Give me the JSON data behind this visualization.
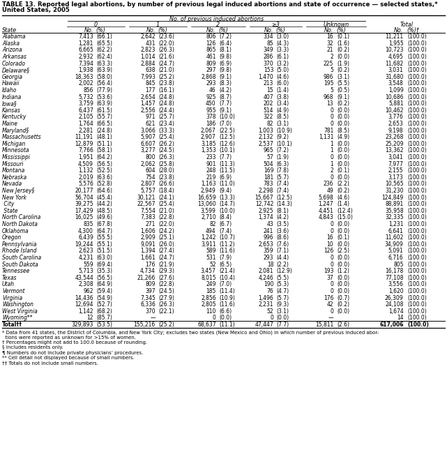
{
  "title_line1": "TABLE 13. Reported legal abortions, by number of previous legal induced abortions and state of occurrence — selected states,*",
  "title_line2": "United States, 2005",
  "col_header_top": "No. of previous induced abortions",
  "col_groups": [
    "0",
    "1",
    "2",
    "≥3",
    "Unknown",
    "Total"
  ],
  "state_col": "State",
  "rows": [
    [
      "Alabama",
      "7,413",
      "(66.1)",
      "2,642",
      "(23.6)",
      "806",
      "(7.2)",
      "334",
      "(3.0)",
      "16",
      "(0.1)",
      "11,211",
      "(100.0)"
    ],
    [
      "Alaska",
      "1,281",
      "(65.5)",
      "431",
      "(22.0)",
      "126",
      "(6.4)",
      "85",
      "(4.3)",
      "32",
      "(1.6)",
      "1,955",
      "(100.0)"
    ],
    [
      "Arizona",
      "6,665",
      "(62.2)",
      "2,823",
      "(26.3)",
      "865",
      "(8.1)",
      "349",
      "(3.3)",
      "21",
      "(0.2)",
      "10,723",
      "(100.0)"
    ],
    [
      "Arkansas",
      "2,932",
      "(62.4)",
      "1,014",
      "(21.6)",
      "461",
      "(9.8)",
      "286",
      "(6.1)",
      "2",
      "(0.0)",
      "4,695",
      "(100.0)"
    ],
    [
      "Colorado",
      "7,394",
      "(63.3)",
      "2,884",
      "(24.7)",
      "809",
      "(6.9)",
      "370",
      "(3.2)",
      "225",
      "(1.9)",
      "11,682",
      "(100.0)"
    ],
    [
      "Delaware§",
      "1,938",
      "(63.9)",
      "638",
      "(21.0)",
      "297",
      "(9.8)",
      "153",
      "(5.0)",
      "5",
      "(0.2)",
      "3,031",
      "(100.0)"
    ],
    [
      "Georgia",
      "18,363",
      "(58.0)",
      "7,993",
      "(25.2)",
      "2,868",
      "(9.1)",
      "1,470",
      "(4.6)",
      "986",
      "(3.1)",
      "31,680",
      "(100.0)"
    ],
    [
      "Hawaii",
      "2,002",
      "(56.4)",
      "845",
      "(23.8)",
      "293",
      "(8.3)",
      "213",
      "(6.0)",
      "195",
      "(5.5)",
      "3,548",
      "(100.0)"
    ],
    [
      "Idaho",
      "856",
      "(77.9)",
      "177",
      "(16.1)",
      "46",
      "(4.2)",
      "15",
      "(1.4)",
      "5",
      "(0.5)",
      "1,099",
      "(100.0)"
    ],
    [
      "Indiana",
      "5,732",
      "(53.6)",
      "2,654",
      "(24.8)",
      "925",
      "(8.7)",
      "407",
      "(3.8)",
      "968",
      "(9.1)",
      "10,686",
      "(100.0)"
    ],
    [
      "Iowa§",
      "3,759",
      "(63.9)",
      "1,457",
      "(24.8)",
      "450",
      "(7.7)",
      "202",
      "(3.4)",
      "13",
      "(0.2)",
      "5,881",
      "(100.0)"
    ],
    [
      "Kansas",
      "6,437",
      "(61.5)",
      "2,556",
      "(24.4)",
      "955",
      "(9.1)",
      "514",
      "(4.9)",
      "0",
      "(0.0)",
      "10,462",
      "(100.0)"
    ],
    [
      "Kentucky",
      "2,105",
      "(55.7)",
      "971",
      "(25.7)",
      "378",
      "(10.0)",
      "322",
      "(8.5)",
      "0",
      "(0.0)",
      "3,776",
      "(100.0)"
    ],
    [
      "Maine",
      "1,764",
      "(66.5)",
      "621",
      "(23.4)",
      "186",
      "(7.0)",
      "82",
      "(3.1)",
      "0",
      "(0.0)",
      "2,653",
      "(100.0)"
    ],
    [
      "Maryland§",
      "2,281",
      "(24.8)",
      "3,066",
      "(33.3)",
      "2,067",
      "(22.5)",
      "1,003",
      "(10.9)",
      "781",
      "(8.5)",
      "9,198",
      "(100.0)"
    ],
    [
      "Massachusetts",
      "11,191",
      "(48.1)",
      "5,907",
      "(25.4)",
      "2,907",
      "(12.5)",
      "2,132",
      "(9.2)",
      "1,131",
      "(4.9)",
      "23,268",
      "(100.0)"
    ],
    [
      "Michigan",
      "12,879",
      "(51.1)",
      "6,607",
      "(26.2)",
      "3,185",
      "(12.6)",
      "2,537",
      "(10.1)",
      "1",
      "(0.0)",
      "25,209",
      "(100.0)"
    ],
    [
      "Minnesota",
      "7,766",
      "(58.1)",
      "3,277",
      "(24.5)",
      "1,353",
      "(10.1)",
      "965",
      "(7.2)",
      "1",
      "(0.0)",
      "13,362",
      "(100.0)"
    ],
    [
      "Mississippi",
      "1,951",
      "(64.2)",
      "800",
      "(26.3)",
      "233",
      "(7.7)",
      "57",
      "(1.9)",
      "0",
      "(0.0)",
      "3,041",
      "(100.0)"
    ],
    [
      "Missouri",
      "4,509",
      "(56.5)",
      "2,062",
      "(25.8)",
      "901",
      "(11.3)",
      "504",
      "(6.3)",
      "1",
      "(0.0)",
      "7,977",
      "(100.0)"
    ],
    [
      "Montana",
      "1,132",
      "(52.5)",
      "604",
      "(28.0)",
      "248",
      "(11.5)",
      "169",
      "(7.8)",
      "2",
      "(0.1)",
      "2,155",
      "(100.0)"
    ],
    [
      "Nebraska",
      "2,019",
      "(63.6)",
      "754",
      "(23.8)",
      "219",
      "(6.9)",
      "181",
      "(5.7)",
      "0",
      "(0.0)",
      "3,173",
      "(100.0)"
    ],
    [
      "Nevada",
      "5,576",
      "(52.8)",
      "2,807",
      "(26.6)",
      "1,163",
      "(11.0)",
      "783",
      "(7.4)",
      "236",
      "(2.2)",
      "10,565",
      "(100.0)"
    ],
    [
      "New Jersey§",
      "20,177",
      "(64.6)",
      "5,757",
      "(18.4)",
      "2,949",
      "(9.4)",
      "2,298",
      "(7.4)",
      "49",
      "(0.2)",
      "31,230",
      "(100.0)"
    ],
    [
      "New York",
      "56,704",
      "(45.4)",
      "30,121",
      "(24.1)",
      "16,659",
      "(13.3)",
      "15,667",
      "(12.5)",
      "5,698",
      "(4.6)",
      "124,849",
      "(100.0)"
    ],
    [
      " City",
      "39,275",
      "(44.2)",
      "22,567",
      "(25.4)",
      "13,060",
      "(14.7)",
      "12,742",
      "(14.3)",
      "1,247",
      "(1.4)",
      "88,891",
      "(100.0)"
    ],
    [
      " State",
      "17,429",
      "(48.5)",
      "7,554",
      "(21.0)",
      "3,599",
      "(10.0)",
      "2,925",
      "(8.1)",
      "4,451",
      "(12.4)",
      "35,958",
      "(100.0)"
    ],
    [
      "North Carolina",
      "16,025",
      "(49.6)",
      "7,383",
      "(22.8)",
      "2,710",
      "(8.4)",
      "1,374",
      "(4.2)",
      "4,843",
      "(15.0)",
      "32,335",
      "(100.0)"
    ],
    [
      "North Dakota",
      "835",
      "(67.8)",
      "271",
      "(22.0)",
      "82",
      "(6.7)",
      "43",
      "(3.5)",
      "0",
      "(0.0)",
      "1,231",
      "(100.0)"
    ],
    [
      "Oklahoma",
      "4,300",
      "(64.7)",
      "1,606",
      "(24.2)",
      "494",
      "(7.4)",
      "241",
      "(3.6)",
      "0",
      "(0.0)",
      "6,641",
      "(100.0)"
    ],
    [
      "Oregon",
      "6,439",
      "(55.5)",
      "2,909",
      "(25.1)",
      "1,242",
      "(10.7)",
      "996",
      "(8.6)",
      "16",
      "(0.1)",
      "11,602",
      "(100.0)"
    ],
    [
      "Pennsylvania",
      "19,244",
      "(55.1)",
      "9,091",
      "(26.0)",
      "3,911",
      "(11.2)",
      "2,653",
      "(7.6)",
      "10",
      "(0.0)",
      "34,909",
      "(100.0)"
    ],
    [
      "Rhode Island",
      "2,623",
      "(51.5)",
      "1,394",
      "(27.4)",
      "589",
      "(11.6)",
      "359",
      "(7.1)",
      "126",
      "(2.5)",
      "5,091",
      "(100.0)"
    ],
    [
      "South Carolina",
      "4,231",
      "(63.0)",
      "1,661",
      "(24.7)",
      "531",
      "(7.9)",
      "293",
      "(4.4)",
      "0",
      "(0.0)",
      "6,716",
      "(100.0)"
    ],
    [
      "South Dakota",
      "559",
      "(69.4)",
      "176",
      "(21.9)",
      "52",
      "(6.5)",
      "18",
      "(2.2)",
      "0",
      "(0.0)",
      "805",
      "(100.0)"
    ],
    [
      "Tennessee",
      "5,713",
      "(35.3)",
      "4,734",
      "(29.3)",
      "3,457",
      "(21.4)",
      "2,081",
      "(12.9)",
      "193",
      "(1.2)",
      "16,178",
      "(100.0)"
    ],
    [
      "Texas",
      "43,544",
      "(56.5)",
      "21,266",
      "(27.6)",
      "8,015",
      "(10.4)",
      "4,246",
      "(5.5)",
      "37",
      "(0.0)",
      "77,108",
      "(100.0)"
    ],
    [
      "Utah",
      "2,308",
      "(64.9)",
      "809",
      "(22.8)",
      "249",
      "(7.0)",
      "190",
      "(5.3)",
      "0",
      "(0.0)",
      "3,556",
      "(100.0)"
    ],
    [
      "Vermont",
      "962",
      "(59.4)",
      "397",
      "(24.5)",
      "185",
      "(11.4)",
      "76",
      "(4.7)",
      "0",
      "(0.0)",
      "1,620",
      "(100.0)"
    ],
    [
      "Virginia",
      "14,436",
      "(54.9)",
      "7,345",
      "(27.9)",
      "2,856",
      "(10.9)",
      "1,496",
      "(5.7)",
      "176",
      "(0.7)",
      "26,309",
      "(100.0)"
    ],
    [
      "Washington",
      "12,694",
      "(52.7)",
      "6,336",
      "(26.3)",
      "2,805",
      "(11.6)",
      "2,231",
      "(9.3)",
      "42",
      "(0.2)",
      "24,108",
      "(100.0)"
    ],
    [
      "West Virginia",
      "1,142",
      "(68.2)",
      "370",
      "(22.1)",
      "110",
      "(6.6)",
      "52",
      "(3.1)",
      "0",
      "(0.0)",
      "1,674",
      "(100.0)"
    ],
    [
      "Wyoming**",
      "12",
      "(85.7)",
      "—",
      "",
      "0",
      "(0.0)",
      "0",
      "(0.0)",
      "—",
      "",
      "14",
      "(100.0)"
    ],
    [
      "Total††",
      "329,893",
      "(53.5)",
      "155,216",
      "(25.2)",
      "68,637",
      "(11.1)",
      "47,447",
      "(7.7)",
      "15,811",
      "(2.6)",
      "617,006",
      "(100.0)"
    ]
  ],
  "footnotes": [
    "* Data from 41 states, the District of Columbia, and New York City; excludes two states (New Mexico and Ohio) in which number of previous induced abor-",
    "  tions were reported as unknown for >15% of women.",
    "† Percentages might not add to 100.0 because of rounding.",
    "§ Includes residents only.",
    "¶ Numbers do not include private physicians’ procedures.",
    "** Cell detail not displayed because of small numbers.",
    "†† Totals do not include small numbers."
  ]
}
